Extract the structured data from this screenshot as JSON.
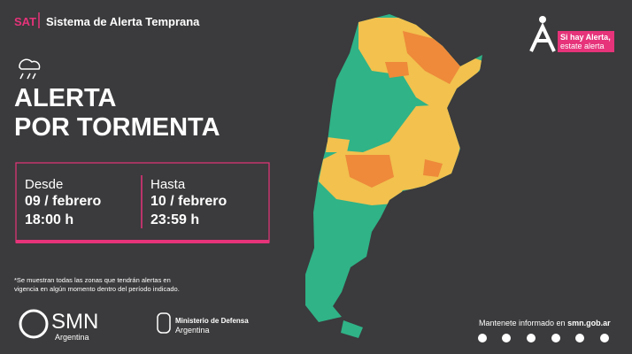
{
  "header": {
    "acronym": "SAT",
    "title": "Sistema de Alerta Temprana"
  },
  "badge": {
    "line1": "Si hay Alerta,",
    "line2": "estate alerta"
  },
  "title": {
    "line1": "ALERTA",
    "line2": "POR TORMENTA"
  },
  "from": {
    "label": "Desde",
    "date": "09 / febrero",
    "time": "18:00 h"
  },
  "until": {
    "label": "Hasta",
    "date": "10 / febrero",
    "time": "23:59 h"
  },
  "note": {
    "line1": "*Se muestran todas las zonas que tendrán alertas en",
    "line2": "vigencia en algún momento dentro del período indicado."
  },
  "logos": {
    "smn": "SMN",
    "smn_sub": "Argentina",
    "ministry": "Ministerio de Defensa",
    "ministry_sub": "Argentina"
  },
  "footer": {
    "text": "Mantenete informado en ",
    "site": "smn.gob.ar"
  }
}
